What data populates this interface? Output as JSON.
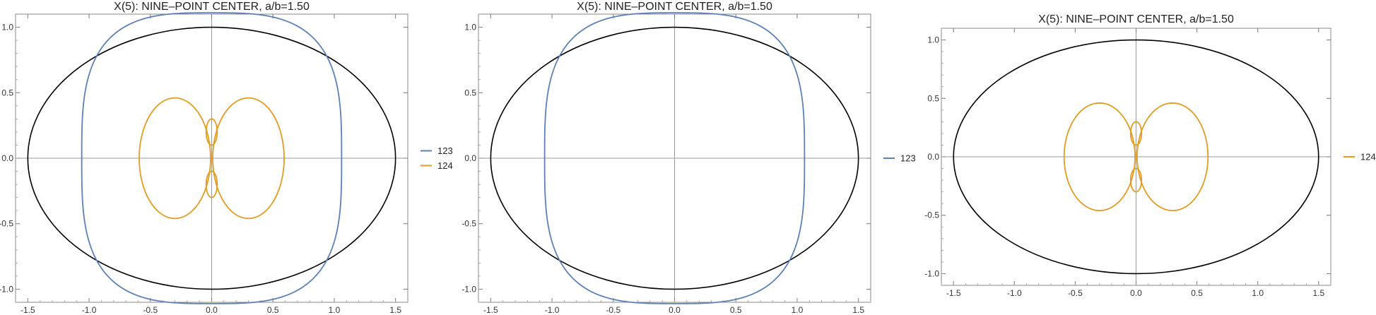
{
  "chart_data": [
    {
      "type": "line",
      "title": "X(5): NINE–POINT CENTER, a/b=1.50",
      "xlabel": "",
      "ylabel": "",
      "xlim": [
        -1.6,
        1.6
      ],
      "ylim": [
        -1.1,
        1.1
      ],
      "xticks": [
        -1.5,
        -1.0,
        -0.5,
        0.0,
        0.5,
        1.0,
        1.5
      ],
      "xtick_labels": [
        "-1.5",
        "-1.0",
        "-0.5",
        "0.0",
        "0.5",
        "1.0",
        "1.5"
      ],
      "yticks": [
        -1.0,
        -0.5,
        0.0,
        0.5,
        1.0
      ],
      "ytick_labels": [
        "-1.0",
        "-0.5",
        "0.0",
        "0.5",
        "1.0"
      ],
      "ellipse": {
        "a": 1.5,
        "b": 1.0,
        "color": "#000000"
      },
      "series": [
        {
          "name": "123",
          "color": "#5E81B5",
          "shape": "outer",
          "max_x": 1.06,
          "max_y": 1.11
        },
        {
          "name": "124",
          "color": "#E19C24",
          "shape": "inner",
          "max_x": 0.6,
          "max_y": 0.46,
          "inner_loop_y": [
            0.12,
            0.28
          ]
        }
      ],
      "legend_position": "right",
      "grid": false
    },
    {
      "type": "line",
      "title": "X(5): NINE–POINT CENTER, a/b=1.50",
      "xlabel": "",
      "ylabel": "",
      "xlim": [
        -1.6,
        1.6
      ],
      "ylim": [
        -1.1,
        1.1
      ],
      "xticks": [
        -1.5,
        -1.0,
        -0.5,
        0.0,
        0.5,
        1.0,
        1.5
      ],
      "xtick_labels": [
        "-1.5",
        "-1.0",
        "-0.5",
        "0.0",
        "0.5",
        "1.0",
        "1.5"
      ],
      "yticks": [
        -1.0,
        -0.5,
        0.0,
        0.5,
        1.0
      ],
      "ytick_labels": [
        "-1.0",
        "-0.5",
        "0.0",
        "0.5",
        "1.0"
      ],
      "ellipse": {
        "a": 1.5,
        "b": 1.0,
        "color": "#000000"
      },
      "series": [
        {
          "name": "123",
          "color": "#5E81B5",
          "shape": "outer",
          "max_x": 1.06,
          "max_y": 1.11
        }
      ],
      "legend_position": "right",
      "grid": false
    },
    {
      "type": "line",
      "title": "X(5): NINE–POINT CENTER, a/b=1.50",
      "xlabel": "",
      "ylabel": "",
      "xlim": [
        -1.6,
        1.6
      ],
      "ylim": [
        -1.1,
        1.1
      ],
      "xticks": [
        -1.5,
        -1.0,
        -0.5,
        0.0,
        0.5,
        1.0,
        1.5
      ],
      "xtick_labels": [
        "-1.5",
        "-1.0",
        "-0.5",
        "0.0",
        "0.5",
        "1.0",
        "1.5"
      ],
      "yticks": [
        -1.0,
        -0.5,
        0.0,
        0.5,
        1.0
      ],
      "ytick_labels": [
        "-1.0",
        "-0.5",
        "0.0",
        "0.5",
        "1.0"
      ],
      "ellipse": {
        "a": 1.5,
        "b": 1.0,
        "color": "#000000"
      },
      "series": [
        {
          "name": "124",
          "color": "#E19C24",
          "shape": "inner",
          "max_x": 0.6,
          "max_y": 0.46,
          "inner_loop_y": [
            0.12,
            0.28
          ]
        }
      ],
      "legend_position": "right",
      "grid": false
    }
  ]
}
